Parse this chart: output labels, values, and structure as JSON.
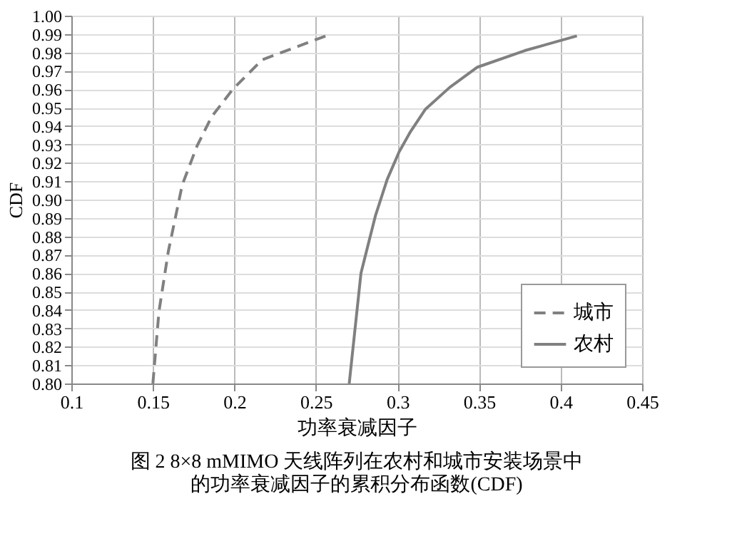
{
  "chart_data": {
    "type": "line",
    "title": "图 2  8×8 mMIMO 天线阵列在农村和城市安装场景中的功率衰减因子的累积分布函数(CDF)",
    "xlabel": "功率衰减因子",
    "ylabel": "CDF",
    "series": [
      {
        "name": "城市",
        "color": "#808080",
        "line_style": "dashed",
        "x": [
          0.15,
          0.1537,
          0.1595,
          0.168,
          0.177,
          0.186,
          0.199,
          0.217,
          0.256
        ],
        "values": [
          0.8,
          0.839,
          0.872,
          0.908,
          0.929,
          0.945,
          0.96,
          0.976,
          0.989
        ]
      },
      {
        "name": "农村",
        "color": "#808080",
        "line_style": "solid",
        "x": [
          0.2704,
          0.2776,
          0.2864,
          0.2937,
          0.301,
          0.308,
          0.317,
          0.332,
          0.349,
          0.378,
          0.41
        ],
        "values": [
          0.8,
          0.86,
          0.891,
          0.911,
          0.926,
          0.937,
          0.949,
          0.961,
          0.972,
          0.981,
          0.989
        ]
      }
    ],
    "xlim": [
      0.1,
      0.45
    ],
    "xticks": [
      0.1,
      0.15,
      0.2,
      0.25,
      0.3,
      0.35,
      0.4,
      0.45
    ],
    "ylim": [
      0.8,
      1.0
    ],
    "yticks": [
      {
        "value": 0.8,
        "label": "0.80"
      },
      0.81,
      0.82,
      0.83,
      0.84,
      0.85,
      0.86,
      0.87,
      0.88,
      0.89,
      {
        "value": 0.9,
        "label": "0.90"
      },
      0.91,
      0.92,
      0.93,
      0.94,
      0.95,
      0.96,
      0.97,
      0.98,
      0.99,
      {
        "value": 1.0,
        "label": "1.00"
      }
    ],
    "grid": true,
    "legend": "bottom right",
    "marker": "none"
  }
}
